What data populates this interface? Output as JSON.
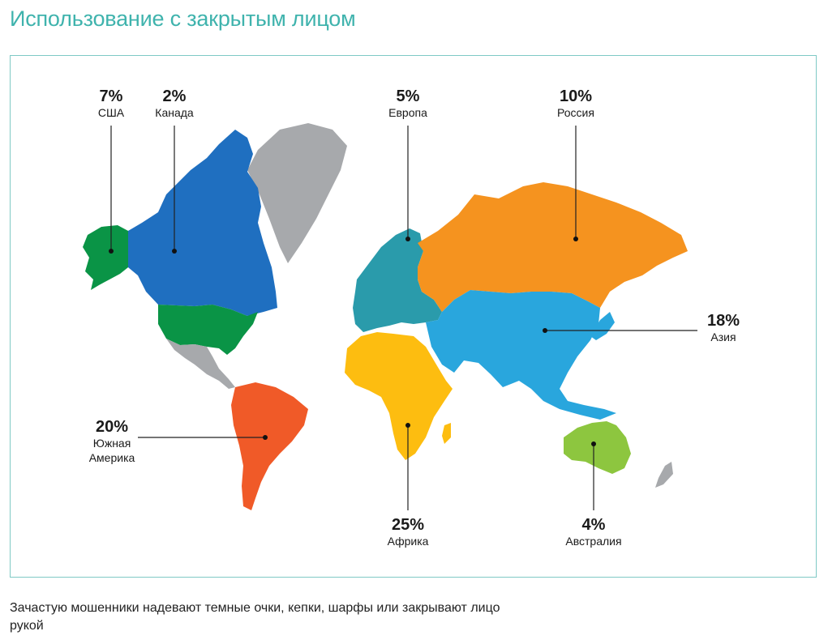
{
  "title": "Использование с закрытым лицом",
  "regions": {
    "usa": {
      "percent": "7%",
      "name": "США",
      "color": "#0a9446"
    },
    "canada": {
      "percent": "2%",
      "name": "Канада",
      "color": "#1f6fc0"
    },
    "europe": {
      "percent": "5%",
      "name": "Европа",
      "color": "#2a9bab"
    },
    "russia": {
      "percent": "10%",
      "name": "Россия",
      "color": "#f5931f"
    },
    "asia": {
      "percent": "18%",
      "name": "Азия",
      "color": "#29a6dd"
    },
    "south_america": {
      "percent": "20%",
      "name_line1": "Южная",
      "name_line2": "Америка",
      "color": "#f05a28"
    },
    "africa": {
      "percent": "25%",
      "name": "Африка",
      "color": "#fdbd10"
    },
    "australia": {
      "percent": "4%",
      "name": "Австралия",
      "color": "#8dc63f"
    },
    "greenland": {
      "color": "#a7a9ac"
    }
  },
  "caption": "Зачастую мошенники надевают темные очки, кепки, шарфы или закрывают лицо рукой"
}
